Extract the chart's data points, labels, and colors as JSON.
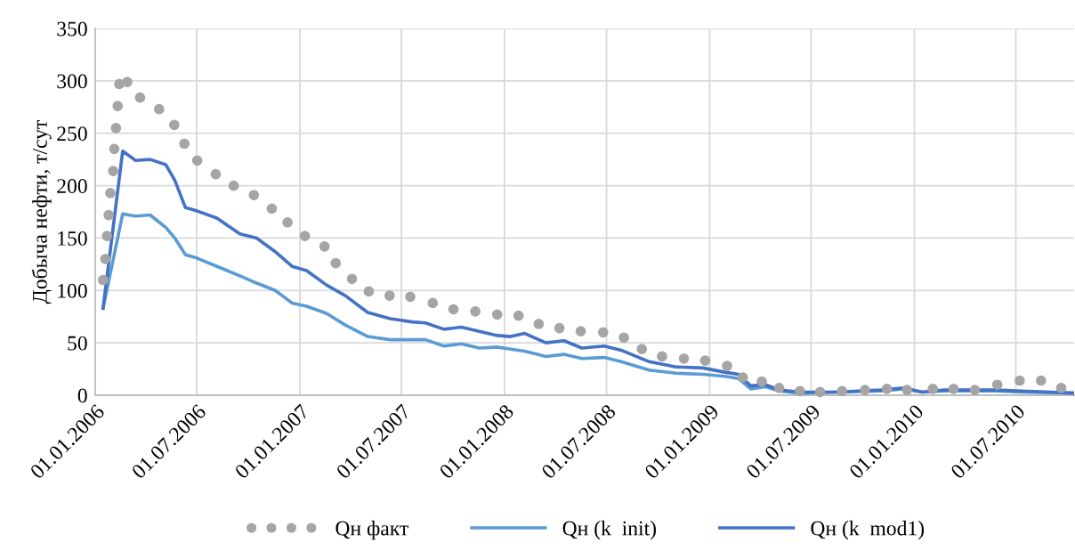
{
  "chart_data": {
    "type": "line",
    "ylabel": "Добыча нефти, т/сут",
    "grid": true,
    "legend": "bottom",
    "xlim": [
      "2006-01-01",
      "2010-10-13"
    ],
    "ylim": [
      0,
      350
    ],
    "yticks": [
      0,
      50,
      100,
      150,
      200,
      250,
      300,
      350
    ],
    "xticks": [
      {
        "value": "2006-01-01",
        "label": "01.01.2006"
      },
      {
        "value": "2006-07-01",
        "label": "01.07.2006"
      },
      {
        "value": "2007-01-01",
        "label": "01.01.2007"
      },
      {
        "value": "2007-07-01",
        "label": "01.07.2007"
      },
      {
        "value": "2008-01-01",
        "label": "01.01.2008"
      },
      {
        "value": "2008-07-01",
        "label": "01.07.2008"
      },
      {
        "value": "2009-01-01",
        "label": "01.01.2009"
      },
      {
        "value": "2009-07-01",
        "label": "01.07.2009"
      },
      {
        "value": "2010-01-01",
        "label": "01.01.2010"
      },
      {
        "value": "2010-07-01",
        "label": "01.07.2010"
      }
    ],
    "series": [
      {
        "name": "Qн факт",
        "type": "scatter",
        "marker": "circle",
        "color": "#a5a5a5",
        "x": [
          "2006-01-15",
          "2006-01-19",
          "2006-01-22",
          "2006-01-25",
          "2006-01-28",
          "2006-02-02",
          "2006-02-04",
          "2006-02-07",
          "2006-02-10",
          "2006-02-13",
          "2006-02-27",
          "2006-03-22",
          "2006-04-25",
          "2006-05-22",
          "2006-06-09",
          "2006-07-02",
          "2006-08-04",
          "2006-09-05",
          "2006-10-11",
          "2006-11-12",
          "2006-12-10",
          "2007-01-10",
          "2007-02-14",
          "2007-03-06",
          "2007-04-04",
          "2007-05-04",
          "2007-06-10",
          "2007-07-17",
          "2007-08-26",
          "2007-10-02",
          "2007-11-10",
          "2007-12-19",
          "2008-01-26",
          "2008-03-02",
          "2008-04-08",
          "2008-05-16",
          "2008-06-25",
          "2008-08-01",
          "2008-09-02",
          "2008-10-08",
          "2008-11-16",
          "2008-12-24",
          "2009-02-01",
          "2009-03-01",
          "2009-04-04",
          "2009-05-05",
          "2009-06-11",
          "2009-07-17",
          "2009-08-25",
          "2009-10-05",
          "2009-11-13",
          "2009-12-19",
          "2010-02-03",
          "2010-03-12",
          "2010-04-19",
          "2010-05-29",
          "2010-07-08",
          "2010-08-15",
          "2010-09-20"
        ],
        "values": [
          110,
          130,
          152,
          172,
          193,
          214,
          235,
          255,
          276,
          297,
          299,
          284,
          273,
          258,
          240,
          224,
          211,
          200,
          191,
          178,
          165,
          152,
          142,
          126,
          111,
          99,
          95,
          94,
          88,
          82,
          80,
          77,
          76,
          68,
          64,
          61,
          60,
          55,
          44,
          37,
          35,
          33,
          28,
          17,
          13,
          7,
          4,
          3,
          4,
          5,
          6,
          5,
          6,
          6,
          5,
          10,
          14,
          14,
          7
        ]
      },
      {
        "name": "Qн (k  init)",
        "color": "#5b9bd5",
        "x": [
          "2006-01-15",
          "2006-02-19",
          "2006-03-14",
          "2006-04-09",
          "2006-05-07",
          "2006-05-23",
          "2006-06-11",
          "2006-07-01",
          "2006-08-06",
          "2006-09-16",
          "2006-10-16",
          "2006-11-18",
          "2006-12-18",
          "2007-01-13",
          "2007-02-18",
          "2007-03-23",
          "2007-05-02",
          "2007-06-11",
          "2007-07-20",
          "2007-08-13",
          "2007-09-15",
          "2007-10-16",
          "2007-11-17",
          "2007-12-19",
          "2008-01-12",
          "2008-02-06",
          "2008-03-15",
          "2008-04-16",
          "2008-05-18",
          "2008-06-27",
          "2008-07-27",
          "2008-09-15",
          "2008-11-02",
          "2008-12-20",
          "2009-01-28",
          "2009-02-21",
          "2009-03-15",
          "2009-04-11",
          "2009-05-05",
          "2009-06-11",
          "2009-08-14",
          "2009-11-03",
          "2009-12-14",
          "2010-01-15",
          "2010-02-23",
          "2010-04-24",
          "2010-05-26",
          "2010-07-12",
          "2010-10-13"
        ],
        "values": [
          83,
          173,
          171,
          172,
          160,
          150,
          134,
          131,
          123,
          114,
          107,
          100,
          88,
          85,
          78,
          67,
          56,
          53,
          53,
          53,
          47,
          49,
          45,
          46,
          44,
          42,
          37,
          39,
          35,
          36,
          32,
          24,
          21,
          20,
          18,
          16,
          6,
          8,
          4,
          2,
          3,
          4,
          6,
          3,
          4,
          4,
          4,
          3,
          2
        ]
      },
      {
        "name": "Qн (k  mod1)",
        "color": "#4472c4",
        "x": [
          "2006-01-15",
          "2006-02-19",
          "2006-03-14",
          "2006-04-09",
          "2006-05-07",
          "2006-05-23",
          "2006-06-11",
          "2006-07-01",
          "2006-08-06",
          "2006-09-16",
          "2006-10-16",
          "2006-11-18",
          "2006-12-18",
          "2007-01-13",
          "2007-02-18",
          "2007-03-23",
          "2007-05-02",
          "2007-06-11",
          "2007-07-20",
          "2007-08-13",
          "2007-09-15",
          "2007-10-16",
          "2007-11-17",
          "2007-12-19",
          "2008-01-12",
          "2008-02-06",
          "2008-03-15",
          "2008-04-16",
          "2008-05-18",
          "2008-06-27",
          "2008-07-27",
          "2008-09-15",
          "2008-11-02",
          "2008-12-20",
          "2009-01-28",
          "2009-02-21",
          "2009-03-15",
          "2009-04-11",
          "2009-05-05",
          "2009-06-11",
          "2009-08-14",
          "2009-11-03",
          "2009-12-14",
          "2010-01-15",
          "2010-02-23",
          "2010-04-24",
          "2010-05-26",
          "2010-07-12",
          "2010-10-13"
        ],
        "values": [
          83,
          233,
          224,
          225,
          220,
          205,
          179,
          176,
          169,
          154,
          150,
          137,
          123,
          119,
          105,
          95,
          79,
          73,
          70,
          69,
          63,
          65,
          61,
          57,
          56,
          59,
          50,
          52,
          45,
          47,
          43,
          32,
          27,
          26,
          22,
          20,
          9,
          10,
          5,
          3,
          3,
          5,
          7,
          3,
          5,
          5,
          5,
          4,
          2
        ]
      }
    ]
  }
}
